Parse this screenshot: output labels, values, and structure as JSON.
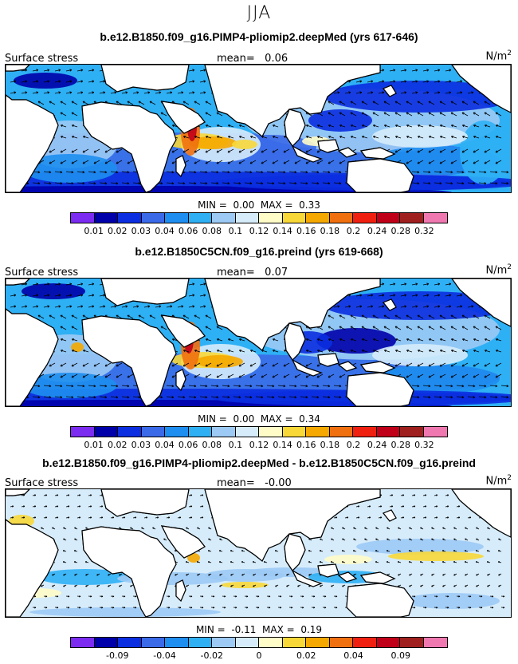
{
  "season": "JJA",
  "colors": {
    "seq": [
      "#7b2cf0",
      "#0000aa",
      "#0a2ee0",
      "#3b6ae8",
      "#1e8ef0",
      "#2fb0f5",
      "#9ccaf5",
      "#d6ecfb",
      "#fffcc8",
      "#f8d838",
      "#f5a800",
      "#f07010",
      "#f02010",
      "#c00018",
      "#a02020",
      "#f078b0"
    ],
    "land": "#ffffff",
    "coast": "#000000",
    "arrow": "#000000"
  },
  "panels": [
    {
      "title": "b.e12.B1850.f09_g16.PIMP4-pliomip2.deepMed (yrs 617-646)",
      "field_label": "Surface stress",
      "mean_label": "mean=",
      "mean_value": "0.06",
      "unit": "N/m",
      "unit_sup": "2",
      "min_label": "MIN =",
      "min_value": "0.00",
      "max_label": "MAX =",
      "max_value": "0.33",
      "ticks": [
        "0.01",
        "0.02",
        "0.03",
        "0.04",
        "0.06",
        "0.08",
        "0.1",
        "0.12",
        "0.14",
        "0.16",
        "0.18",
        "0.2",
        "0.24",
        "0.28",
        "0.32"
      ]
    },
    {
      "title": "b.e12.B1850C5CN.f09_g16.preind (yrs 619-668)",
      "field_label": "Surface stress",
      "mean_label": "mean=",
      "mean_value": "0.07",
      "unit": "N/m",
      "unit_sup": "2",
      "min_label": "MIN =",
      "min_value": "0.00",
      "max_label": "MAX =",
      "max_value": "0.34",
      "ticks": [
        "0.01",
        "0.02",
        "0.03",
        "0.04",
        "0.06",
        "0.08",
        "0.1",
        "0.12",
        "0.14",
        "0.16",
        "0.18",
        "0.2",
        "0.24",
        "0.28",
        "0.32"
      ]
    },
    {
      "title": "b.e12.B1850.f09_g16.PIMP4-pliomip2.deepMed - b.e12.B1850C5CN.f09_g16.preind",
      "field_label": "Surface stress",
      "mean_label": "mean=",
      "mean_value": "-0.00",
      "unit": "N/m",
      "unit_sup": "2",
      "min_label": "MIN =",
      "min_value": "-0.11",
      "max_label": "MAX =",
      "max_value": "0.19",
      "ticks": [
        "",
        "-0.09",
        "",
        "-0.04",
        "",
        "-0.02",
        "",
        "0",
        "",
        "0.02",
        "",
        "0.04",
        "",
        "0.09",
        ""
      ]
    }
  ]
}
